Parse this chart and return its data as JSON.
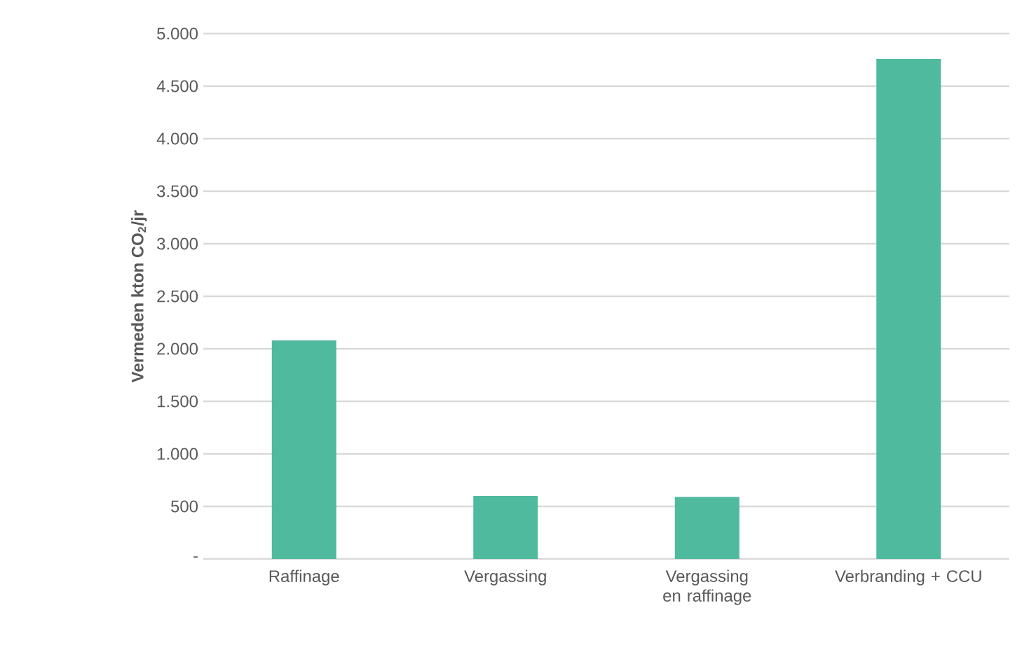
{
  "chart_data": {
    "type": "bar",
    "ylabel": "**Vermeden kton CO$_{2}$/jr**",
    "categories": [
      "Raffinage",
      "Vergassing",
      "Vergassing en raffinage",
      "Verbranding + CCU"
    ],
    "values": [
      2080,
      600,
      590,
      4760
    ],
    "color": "#4fba9e",
    "ylim": [
      0,
      5000
    ],
    "yticks": [
      {
        "value": 0,
        "label": "-"
      },
      {
        "value": 500,
        "label": "500"
      },
      {
        "value": 1000,
        "label": "1.000"
      },
      {
        "value": 1500,
        "label": "1.500"
      },
      {
        "value": 2000,
        "label": "2.000"
      },
      {
        "value": 2500,
        "label": "2.500"
      },
      {
        "value": 3000,
        "label": "3.000"
      },
      {
        "value": 3500,
        "label": "3.500"
      },
      {
        "value": 4000,
        "label": "4.000"
      },
      {
        "value": 4500,
        "label": "4.500"
      },
      {
        "value": 5000,
        "label": "5.000"
      }
    ],
    "grid": "y"
  }
}
